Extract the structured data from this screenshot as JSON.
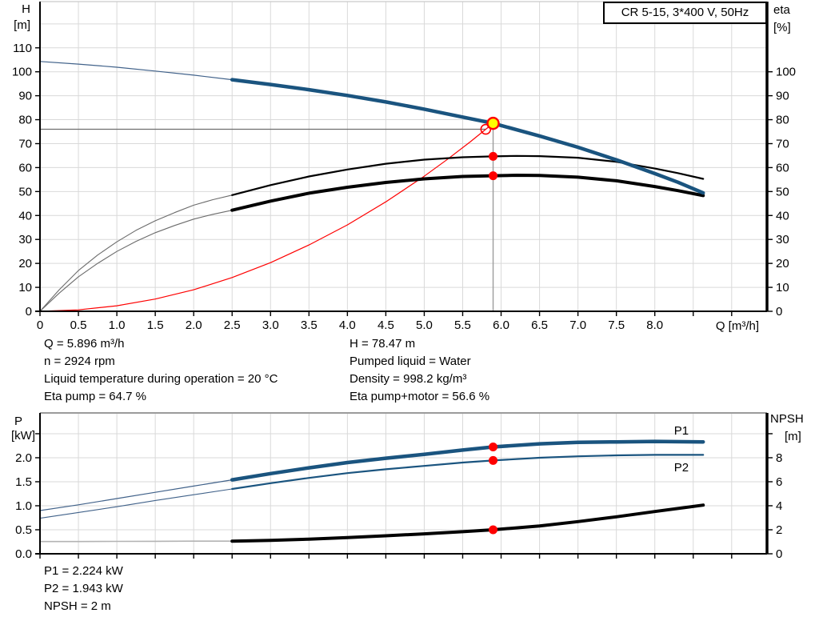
{
  "title_box": "CR 5-15, 3*400 V, 50Hz",
  "axis_labels": {
    "top_left_line1": "H",
    "top_left_line2": "[m]",
    "top_right_line1": "eta",
    "top_right_line2": "[%]",
    "bottom_left_line1": "P",
    "bottom_left_line2": "[kW]",
    "bottom_right_line1": "NPSH",
    "bottom_right_line2": "[m]"
  },
  "info_top_left": [
    "Q = 5.896 m³/h",
    "n = 2924 rpm",
    "Liquid temperature during operation = 20 °C",
    "Eta pump = 64.7 %"
  ],
  "info_top_right": [
    "H = 78.47 m",
    "Pumped liquid = Water",
    "Density = 998.2 kg/m³",
    "Eta pump+motor = 56.6 %"
  ],
  "info_bottom": [
    "P1 = 2.224 kW",
    "P2 = 1.943 kW",
    "NPSH = 2 m"
  ],
  "colors": {
    "curve_blue": "#1a547f",
    "curve_black": "#000000",
    "system_red": "#fe0000",
    "marker_yellow": "#ffff00",
    "grid": "#d9d9d9",
    "hline_gray": "#6e6e6e",
    "vline_gray": "#9c9c9c"
  },
  "chart_data": [
    {
      "type": "line",
      "title": "CR 5-15, 3*400 V, 50Hz",
      "xlabel": "Q [m³/h]",
      "ylabel_left": "H [m]",
      "ylabel_right": "eta [%]",
      "xlim": [
        0,
        9.46
      ],
      "ylim_left": [
        0,
        129.3
      ],
      "ylim_right": [
        0,
        129.3
      ],
      "grid_x_step": 0.5,
      "grid_y_step": 10,
      "x_ticks": {
        "values": [
          0,
          0.5,
          1,
          1.5,
          2,
          2.5,
          3,
          3.5,
          4,
          4.5,
          5,
          5.5,
          6,
          6.5,
          7,
          7.5,
          8
        ],
        "labels": [
          "0",
          "0.5",
          "1.0",
          "1.5",
          "2.0",
          "2.5",
          "3.0",
          "3.5",
          "4.0",
          "4.5",
          "5.0",
          "5.5",
          "6.0",
          "6.5",
          "7.0",
          "7.5",
          "8.0"
        ],
        "minor": [
          8.5,
          9
        ]
      },
      "y_ticks_left": {
        "values": [
          0,
          10,
          20,
          30,
          40,
          50,
          60,
          70,
          80,
          90,
          100,
          110
        ],
        "labels": [
          "0",
          "10",
          "20",
          "30",
          "40",
          "50",
          "60",
          "70",
          "80",
          "90",
          "100",
          "110"
        ],
        "minor": []
      },
      "y_ticks_right": {
        "values": [
          0,
          10,
          20,
          30,
          40,
          50,
          60,
          70,
          80,
          90,
          100
        ],
        "labels": [
          "0",
          "10",
          "20",
          "30",
          "40",
          "50",
          "60",
          "70",
          "80",
          "90",
          "100"
        ],
        "minor": []
      },
      "guides": {
        "hline": {
          "y": 76,
          "x0": 0,
          "x1": 5.8
        },
        "vline": {
          "x": 5.896,
          "y0": 0,
          "y1": 78.47
        }
      },
      "series": [
        {
          "name": "system-curve",
          "axis": "left",
          "color": "#fe0000",
          "width": 1.2,
          "points": [
            [
              0,
              0
            ],
            [
              0.5,
              0.6
            ],
            [
              1,
              2.3
            ],
            [
              1.5,
              5.1
            ],
            [
              2,
              9
            ],
            [
              2.5,
              14.1
            ],
            [
              3,
              20.3
            ],
            [
              3.5,
              27.7
            ],
            [
              4,
              36.1
            ],
            [
              4.5,
              45.7
            ],
            [
              5,
              56.4
            ],
            [
              5.3,
              63.4
            ],
            [
              5.6,
              70.8
            ],
            [
              5.896,
              78.47
            ]
          ]
        },
        {
          "name": "eta-pump",
          "axis": "right",
          "color": "#000000",
          "width": 2.2,
          "thin_until": 2.5,
          "thin_width": 1.1,
          "thin_color": "#6b6b6b",
          "points": [
            [
              0,
              0
            ],
            [
              0.25,
              9
            ],
            [
              0.5,
              17
            ],
            [
              0.75,
              23.5
            ],
            [
              1,
              29
            ],
            [
              1.25,
              33.8
            ],
            [
              1.5,
              37.8
            ],
            [
              1.75,
              41.2
            ],
            [
              2,
              44.3
            ],
            [
              2.25,
              46.6
            ],
            [
              2.5,
              48.5
            ],
            [
              3,
              52.7
            ],
            [
              3.5,
              56.3
            ],
            [
              4,
              59.2
            ],
            [
              4.5,
              61.6
            ],
            [
              5,
              63.3
            ],
            [
              5.5,
              64.3
            ],
            [
              5.896,
              64.7
            ],
            [
              6.2,
              64.9
            ],
            [
              6.5,
              64.8
            ],
            [
              7,
              64.1
            ],
            [
              7.5,
              62.4
            ],
            [
              8,
              59.6
            ],
            [
              8.3,
              57.7
            ],
            [
              8.63,
              55.3
            ]
          ]
        },
        {
          "name": "eta-pump-motor",
          "axis": "right",
          "color": "#000000",
          "width": 4,
          "thin_until": 2.5,
          "thin_width": 1.1,
          "thin_color": "#6b6b6b",
          "points": [
            [
              0,
              0
            ],
            [
              0.25,
              7.6
            ],
            [
              0.5,
              14.4
            ],
            [
              0.75,
              20
            ],
            [
              1,
              25
            ],
            [
              1.25,
              29.2
            ],
            [
              1.5,
              32.8
            ],
            [
              1.75,
              35.8
            ],
            [
              2,
              38.5
            ],
            [
              2.25,
              40.5
            ],
            [
              2.5,
              42.2
            ],
            [
              3,
              46
            ],
            [
              3.5,
              49.3
            ],
            [
              4,
              51.8
            ],
            [
              4.5,
              53.8
            ],
            [
              5,
              55.3
            ],
            [
              5.5,
              56.3
            ],
            [
              5.896,
              56.6
            ],
            [
              6.2,
              56.8
            ],
            [
              6.5,
              56.7
            ],
            [
              7,
              56
            ],
            [
              7.5,
              54.5
            ],
            [
              8,
              52.1
            ],
            [
              8.3,
              50.4
            ],
            [
              8.63,
              48.3
            ]
          ]
        },
        {
          "name": "QH",
          "axis": "left",
          "color": "#1a547f",
          "width": 4.5,
          "thin_until": 2.5,
          "thin_width": 1.2,
          "thin_color": "#41628a",
          "points": [
            [
              0,
              104.3
            ],
            [
              0.5,
              103.2
            ],
            [
              1,
              101.9
            ],
            [
              1.5,
              100.3
            ],
            [
              2,
              98.6
            ],
            [
              2.5,
              96.7
            ],
            [
              3,
              94.7
            ],
            [
              3.5,
              92.5
            ],
            [
              4,
              90.1
            ],
            [
              4.5,
              87.4
            ],
            [
              5,
              84.4
            ],
            [
              5.5,
              81.1
            ],
            [
              5.896,
              78.47
            ],
            [
              6.5,
              73.2
            ],
            [
              7,
              68.5
            ],
            [
              7.5,
              63.2
            ],
            [
              8,
              57.5
            ],
            [
              8.3,
              53.9
            ],
            [
              8.63,
              49.4
            ]
          ]
        }
      ],
      "markers": [
        {
          "q": 5.8,
          "v": 76,
          "axis": "left",
          "style": "open"
        },
        {
          "q": 5.896,
          "v": 78.47,
          "axis": "left",
          "style": "duty"
        },
        {
          "q": 5.896,
          "v": 64.7,
          "axis": "right",
          "style": "dot"
        },
        {
          "q": 5.896,
          "v": 56.6,
          "axis": "right",
          "style": "dot"
        }
      ]
    },
    {
      "type": "line",
      "title": "",
      "xlabel": "",
      "ylabel_left": "P [kW]",
      "ylabel_right": "NPSH [m]",
      "xlim": [
        0,
        9.46
      ],
      "ylim_left": [
        0,
        2.933
      ],
      "ylim_right": [
        0,
        11.73
      ],
      "grid_x_step": 0.5,
      "grid_y_step": 0.5,
      "x_ticks": {
        "values": [],
        "labels": [],
        "minor": [
          0,
          0.5,
          1,
          1.5,
          2,
          2.5,
          3,
          3.5,
          4,
          4.5,
          5,
          5.5,
          6,
          6.5,
          7,
          7.5,
          8,
          8.5,
          9
        ]
      },
      "y_ticks_left": {
        "values": [
          0,
          0.5,
          1,
          1.5,
          2
        ],
        "labels": [
          "0.0",
          "0.5",
          "1.0",
          "1.5",
          "2.0"
        ],
        "minor": [
          2.5
        ]
      },
      "y_ticks_right": {
        "values": [
          0,
          2,
          4,
          6,
          8
        ],
        "labels": [
          "0",
          "2",
          "4",
          "6",
          "8"
        ],
        "minor": [
          10
        ]
      },
      "guides": {},
      "series": [
        {
          "name": "NPSH",
          "axis": "right",
          "color": "#000000",
          "width": 4,
          "thin_until": 2.5,
          "thin_width": 1.6,
          "thin_color": "#b3b3b3",
          "points": [
            [
              0,
              1.02
            ],
            [
              0.5,
              1.02
            ],
            [
              1,
              1.03
            ],
            [
              1.5,
              1.04
            ],
            [
              2,
              1.05
            ],
            [
              2.5,
              1.05
            ],
            [
              3,
              1.12
            ],
            [
              3.5,
              1.22
            ],
            [
              4,
              1.35
            ],
            [
              4.5,
              1.5
            ],
            [
              5,
              1.66
            ],
            [
              5.5,
              1.84
            ],
            [
              5.896,
              2.0
            ],
            [
              6.5,
              2.32
            ],
            [
              7,
              2.68
            ],
            [
              7.5,
              3.08
            ],
            [
              8,
              3.52
            ],
            [
              8.63,
              4.05
            ]
          ]
        },
        {
          "name": "P2",
          "axis": "left",
          "color": "#1a547f",
          "width": 2.2,
          "thin_until": 2.5,
          "thin_width": 1.1,
          "thin_color": "#41628a",
          "label": "P2",
          "label_at": [
            8.25,
            1.72
          ],
          "points": [
            [
              0,
              0.74
            ],
            [
              0.5,
              0.86
            ],
            [
              1,
              0.98
            ],
            [
              1.5,
              1.11
            ],
            [
              2,
              1.23
            ],
            [
              2.5,
              1.35
            ],
            [
              3,
              1.47
            ],
            [
              3.5,
              1.58
            ],
            [
              4,
              1.68
            ],
            [
              4.5,
              1.76
            ],
            [
              5,
              1.83
            ],
            [
              5.5,
              1.9
            ],
            [
              5.896,
              1.943
            ],
            [
              6.5,
              2.0
            ],
            [
              7,
              2.03
            ],
            [
              7.5,
              2.05
            ],
            [
              8,
              2.06
            ],
            [
              8.63,
              2.06
            ]
          ]
        },
        {
          "name": "P1",
          "axis": "left",
          "color": "#1a547f",
          "width": 4.5,
          "thin_until": 2.5,
          "thin_width": 1.2,
          "thin_color": "#41628a",
          "label": "P1",
          "label_at": [
            8.25,
            2.48
          ],
          "points": [
            [
              0,
              0.9
            ],
            [
              0.5,
              1.02
            ],
            [
              1,
              1.15
            ],
            [
              1.5,
              1.28
            ],
            [
              2,
              1.41
            ],
            [
              2.5,
              1.54
            ],
            [
              3,
              1.67
            ],
            [
              3.5,
              1.79
            ],
            [
              4,
              1.9
            ],
            [
              4.5,
              1.99
            ],
            [
              5,
              2.07
            ],
            [
              5.5,
              2.16
            ],
            [
              5.896,
              2.224
            ],
            [
              6.5,
              2.29
            ],
            [
              7,
              2.32
            ],
            [
              7.5,
              2.33
            ],
            [
              8,
              2.34
            ],
            [
              8.63,
              2.33
            ]
          ]
        }
      ],
      "markers": [
        {
          "q": 5.896,
          "v": 2.224,
          "axis": "left",
          "style": "dot"
        },
        {
          "q": 5.896,
          "v": 1.943,
          "axis": "left",
          "style": "dot"
        },
        {
          "q": 5.896,
          "v": 2.0,
          "axis": "right",
          "style": "dot"
        }
      ]
    }
  ]
}
